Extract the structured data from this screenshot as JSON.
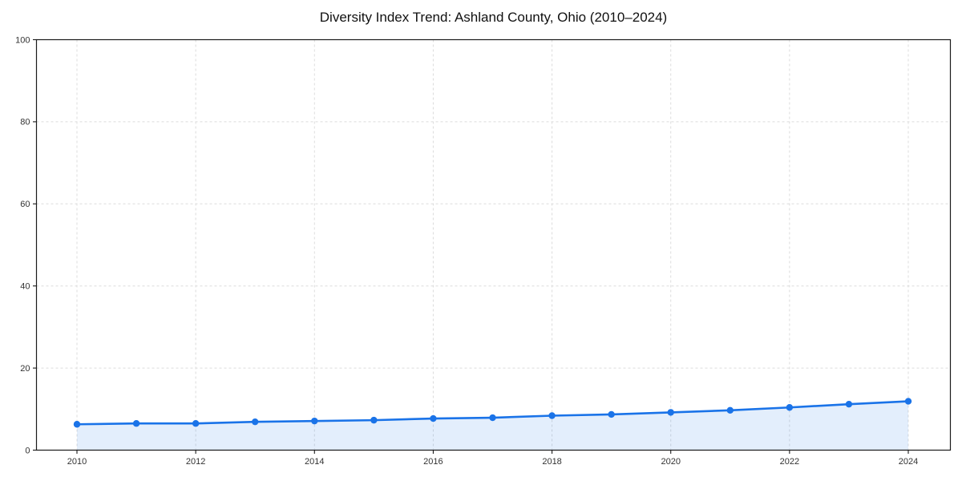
{
  "chart_data": {
    "type": "line",
    "title": "Diversity Index Trend: Ashland County, Ohio (2010–2024)",
    "xlabel": "",
    "ylabel": "",
    "x": [
      2010,
      2011,
      2012,
      2013,
      2014,
      2015,
      2016,
      2017,
      2018,
      2019,
      2020,
      2021,
      2022,
      2023,
      2024
    ],
    "values": [
      6.3,
      6.5,
      6.5,
      6.9,
      7.1,
      7.3,
      7.7,
      7.9,
      8.4,
      8.7,
      9.2,
      9.7,
      10.4,
      11.2,
      11.9
    ],
    "series_name": "Diversity Index",
    "xticks": [
      2010,
      2012,
      2014,
      2016,
      2018,
      2020,
      2022,
      2024
    ],
    "yticks": [
      0,
      20,
      40,
      60,
      80,
      100
    ],
    "ylim": [
      0,
      100
    ],
    "grid": true,
    "grid_style": "dashed",
    "legend": false,
    "marker": "circle",
    "area_fill": true,
    "colors": {
      "line": "#1a73e8",
      "marker": "#1a73e8",
      "area": "#1a73e8",
      "area_opacity": 0.12,
      "grid": "#dcdcdc",
      "spine": "#1a1a1a",
      "tick_label": "#333333",
      "title": "#111111",
      "background": "#ffffff"
    }
  }
}
